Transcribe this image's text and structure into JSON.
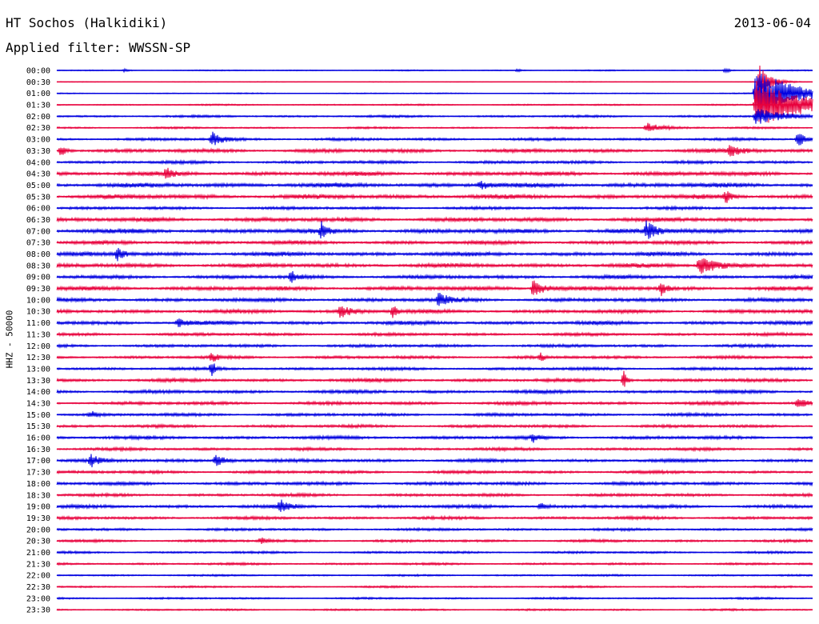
{
  "header": {
    "station": "HT Sochos (Halkidiki)",
    "date": "2013-06-04",
    "filter": "Applied filter: WWSSN-SP"
  },
  "chart_data": {
    "type": "line",
    "ylabel": "HHZ - 50000",
    "colors": {
      "even": "#0000e0",
      "odd": "#e8003c"
    },
    "rows": [
      "00:00",
      "00:30",
      "01:00",
      "01:30",
      "02:00",
      "02:30",
      "03:00",
      "03:30",
      "04:00",
      "04:30",
      "05:00",
      "05:30",
      "06:00",
      "06:30",
      "07:00",
      "07:30",
      "08:00",
      "08:30",
      "09:00",
      "09:30",
      "10:00",
      "10:30",
      "11:00",
      "11:30",
      "12:00",
      "12:30",
      "13:00",
      "13:30",
      "14:00",
      "14:30",
      "15:00",
      "15:30",
      "16:00",
      "16:30",
      "17:00",
      "17:30",
      "18:00",
      "18:30",
      "19:00",
      "19:30",
      "20:00",
      "20:30",
      "21:00",
      "21:30",
      "22:00",
      "22:30",
      "23:00",
      "23:30"
    ],
    "noise_level": [
      0.6,
      0.4,
      0.6,
      0.8,
      1.2,
      1.0,
      1.5,
      2.0,
      1.6,
      2.2,
      2.4,
      2.4,
      1.6,
      2.2,
      2.4,
      2.0,
      2.2,
      2.2,
      2.0,
      2.2,
      2.0,
      2.0,
      2.0,
      1.6,
      1.6,
      1.6,
      1.6,
      1.8,
      1.8,
      1.8,
      1.6,
      1.6,
      1.8,
      1.6,
      1.8,
      1.6,
      1.8,
      1.6,
      1.8,
      1.6,
      1.4,
      1.4,
      1.2,
      1.2,
      1.0,
      1.0,
      1.0,
      1.0
    ],
    "events": [
      {
        "row": 0,
        "t": 0.09,
        "amp": 2,
        "dur": 0.004
      },
      {
        "row": 0,
        "t": 0.61,
        "amp": 2,
        "dur": 0.004
      },
      {
        "row": 0,
        "t": 0.885,
        "amp": 4,
        "dur": 0.004
      },
      {
        "row": 1,
        "t": 0.93,
        "amp": 24,
        "dur": 0.012
      },
      {
        "row": 2,
        "t": 0.925,
        "amp": 30,
        "dur": 0.05
      },
      {
        "row": 3,
        "t": 0.925,
        "amp": 30,
        "dur": 0.06
      },
      {
        "row": 4,
        "t": 0.925,
        "amp": 10,
        "dur": 0.03
      },
      {
        "row": 5,
        "t": 0.78,
        "amp": 6,
        "dur": 0.02
      },
      {
        "row": 6,
        "t": 0.205,
        "amp": 9,
        "dur": 0.012
      },
      {
        "row": 6,
        "t": 0.98,
        "amp": 10,
        "dur": 0.01
      },
      {
        "row": 7,
        "t": 0.005,
        "amp": 8,
        "dur": 0.006
      },
      {
        "row": 7,
        "t": 0.89,
        "amp": 6,
        "dur": 0.015
      },
      {
        "row": 9,
        "t": 0.145,
        "amp": 7,
        "dur": 0.006
      },
      {
        "row": 10,
        "t": 0.56,
        "amp": 6,
        "dur": 0.01
      },
      {
        "row": 11,
        "t": 0.885,
        "amp": 8,
        "dur": 0.006
      },
      {
        "row": 14,
        "t": 0.35,
        "amp": 10,
        "dur": 0.006
      },
      {
        "row": 14,
        "t": 0.78,
        "amp": 11,
        "dur": 0.012
      },
      {
        "row": 16,
        "t": 0.08,
        "amp": 8,
        "dur": 0.008
      },
      {
        "row": 17,
        "t": 0.85,
        "amp": 12,
        "dur": 0.02
      },
      {
        "row": 18,
        "t": 0.31,
        "amp": 7,
        "dur": 0.008
      },
      {
        "row": 19,
        "t": 0.63,
        "amp": 10,
        "dur": 0.015
      },
      {
        "row": 19,
        "t": 0.8,
        "amp": 8,
        "dur": 0.006
      },
      {
        "row": 20,
        "t": 0.505,
        "amp": 8,
        "dur": 0.012
      },
      {
        "row": 21,
        "t": 0.375,
        "amp": 7,
        "dur": 0.015
      },
      {
        "row": 21,
        "t": 0.445,
        "amp": 9,
        "dur": 0.004
      },
      {
        "row": 22,
        "t": 0.16,
        "amp": 5,
        "dur": 0.012
      },
      {
        "row": 25,
        "t": 0.205,
        "amp": 6,
        "dur": 0.006
      },
      {
        "row": 25,
        "t": 0.64,
        "amp": 8,
        "dur": 0.003
      },
      {
        "row": 26,
        "t": 0.205,
        "amp": 11,
        "dur": 0.004
      },
      {
        "row": 27,
        "t": 0.75,
        "amp": 12,
        "dur": 0.004
      },
      {
        "row": 29,
        "t": 0.98,
        "amp": 6,
        "dur": 0.01
      },
      {
        "row": 30,
        "t": 0.045,
        "amp": 5,
        "dur": 0.006
      },
      {
        "row": 32,
        "t": 0.63,
        "amp": 5,
        "dur": 0.006
      },
      {
        "row": 34,
        "t": 0.045,
        "amp": 10,
        "dur": 0.008
      },
      {
        "row": 34,
        "t": 0.21,
        "amp": 7,
        "dur": 0.015
      },
      {
        "row": 38,
        "t": 0.295,
        "amp": 8,
        "dur": 0.01
      },
      {
        "row": 38,
        "t": 0.64,
        "amp": 5,
        "dur": 0.008
      },
      {
        "row": 41,
        "t": 0.27,
        "amp": 4,
        "dur": 0.006
      }
    ]
  }
}
